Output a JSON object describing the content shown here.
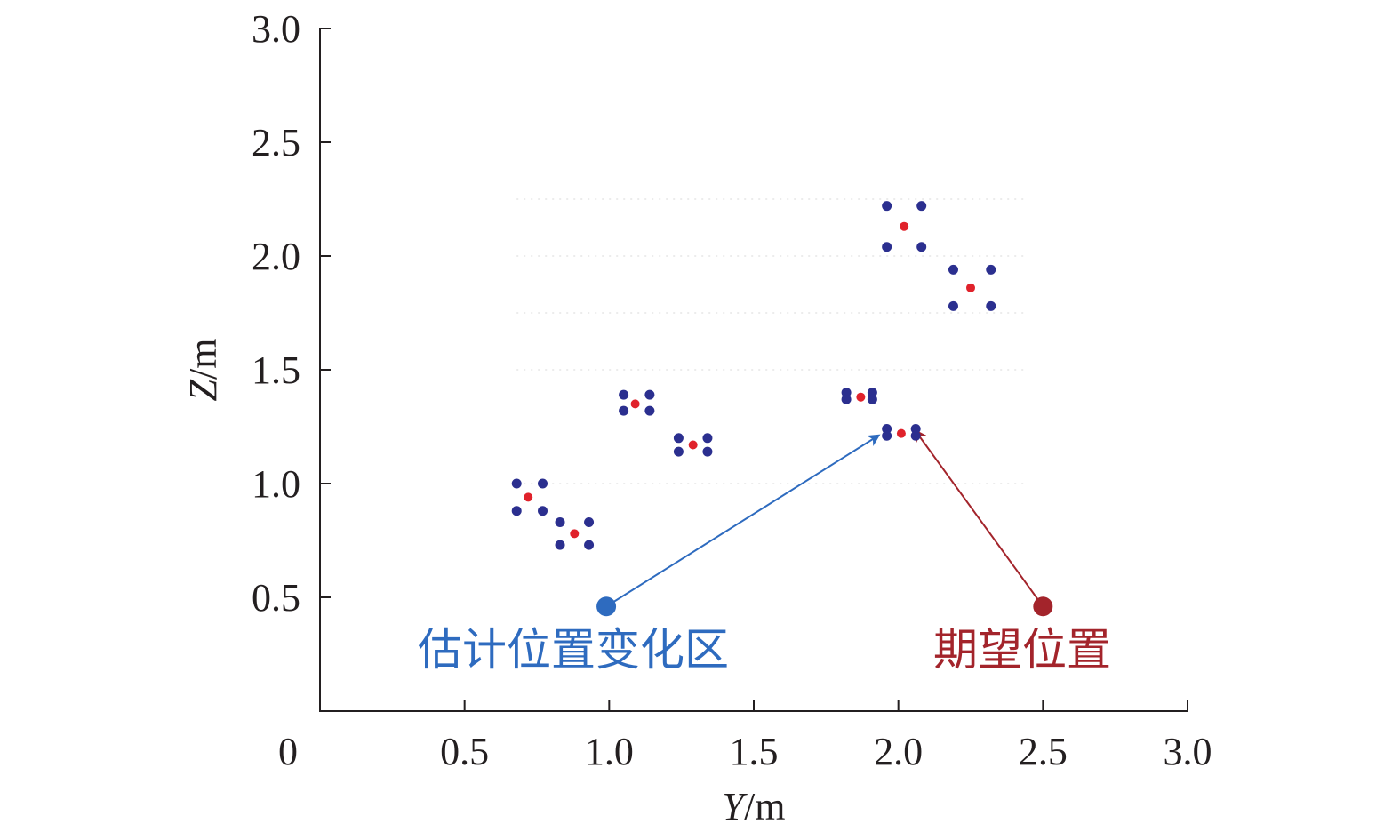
{
  "chart_data": {
    "type": "scatter",
    "xlabel": {
      "var": "Y",
      "unit": "/m"
    },
    "ylabel": {
      "var": "Z",
      "unit": "/m"
    },
    "xlim": [
      0,
      3.0
    ],
    "ylim": [
      0,
      3.0
    ],
    "x_ticks": [
      "0",
      "0.5",
      "1.0",
      "1.5",
      "2.0",
      "2.5",
      "3.0"
    ],
    "y_ticks": [
      "0.5",
      "1.0",
      "1.5",
      "2.0",
      "2.5",
      "3.0"
    ],
    "grid": "faint dotted, partial",
    "colors": {
      "estimated": "#2b2f8f",
      "center": "#e0222b",
      "legend_estimated": "#2e6bbf",
      "legend_expected": "#a3242b",
      "axis": "#231f20"
    },
    "groups": [
      {
        "center": [
          0.72,
          0.94
        ],
        "corners": [
          [
            0.68,
            1.0
          ],
          [
            0.77,
            1.0
          ],
          [
            0.68,
            0.88
          ],
          [
            0.77,
            0.88
          ]
        ]
      },
      {
        "center": [
          0.88,
          0.78
        ],
        "corners": [
          [
            0.83,
            0.83
          ],
          [
            0.93,
            0.83
          ],
          [
            0.83,
            0.73
          ],
          [
            0.93,
            0.73
          ]
        ]
      },
      {
        "center": [
          1.09,
          1.35
        ],
        "corners": [
          [
            1.05,
            1.39
          ],
          [
            1.14,
            1.39
          ],
          [
            1.05,
            1.32
          ],
          [
            1.14,
            1.32
          ]
        ]
      },
      {
        "center": [
          1.29,
          1.17
        ],
        "corners": [
          [
            1.24,
            1.2
          ],
          [
            1.34,
            1.2
          ],
          [
            1.24,
            1.14
          ],
          [
            1.34,
            1.14
          ]
        ]
      },
      {
        "center": [
          1.87,
          1.38
        ],
        "corners": [
          [
            1.82,
            1.4
          ],
          [
            1.91,
            1.4
          ],
          [
            1.82,
            1.37
          ],
          [
            1.91,
            1.37
          ]
        ]
      },
      {
        "center": [
          2.01,
          1.22
        ],
        "corners": [
          [
            1.96,
            1.24
          ],
          [
            2.06,
            1.24
          ],
          [
            1.96,
            1.21
          ],
          [
            2.06,
            1.21
          ]
        ]
      },
      {
        "center": [
          2.02,
          2.13
        ],
        "corners": [
          [
            1.96,
            2.22
          ],
          [
            2.08,
            2.22
          ],
          [
            1.96,
            2.04
          ],
          [
            2.08,
            2.04
          ]
        ]
      },
      {
        "center": [
          2.25,
          1.86
        ],
        "corners": [
          [
            2.19,
            1.94
          ],
          [
            2.32,
            1.94
          ],
          [
            2.19,
            1.78
          ],
          [
            2.32,
            1.78
          ]
        ]
      }
    ],
    "annotations": [
      {
        "label": "估计位置变化区",
        "marker": [
          0.99,
          0.46
        ],
        "arrow_to": [
          1.93,
          1.21
        ],
        "color": "#2e6bbf"
      },
      {
        "label": "期望位置",
        "marker": [
          2.5,
          0.46
        ],
        "arrow_to": [
          2.06,
          1.23
        ],
        "color": "#a3242b"
      }
    ]
  }
}
